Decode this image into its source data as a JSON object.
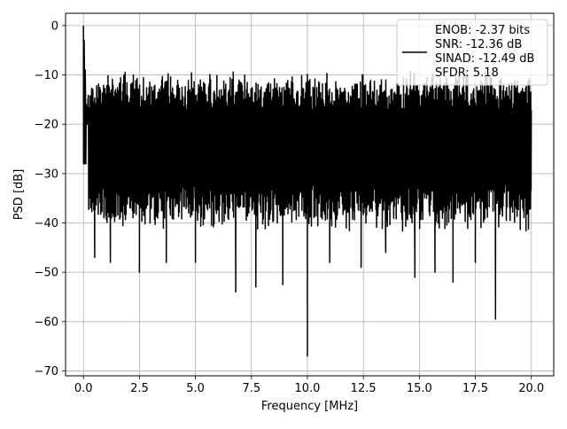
{
  "chart_data": {
    "type": "line",
    "xlabel": "Frequency [MHz]",
    "ylabel": "PSD [dB]",
    "xlim": [
      -0.8,
      21.0
    ],
    "ylim": [
      -71,
      2.5
    ],
    "xticks": [
      0.0,
      2.5,
      5.0,
      7.5,
      10.0,
      12.5,
      15.0,
      17.5,
      20.0
    ],
    "xtick_labels": [
      "0.0",
      "2.5",
      "5.0",
      "7.5",
      "10.0",
      "12.5",
      "15.0",
      "17.5",
      "20.0"
    ],
    "yticks": [
      0,
      -10,
      -20,
      -30,
      -40,
      -50,
      -60,
      -70
    ],
    "ytick_labels": [
      "0",
      "−10",
      "−20",
      "−30",
      "−40",
      "−50",
      "−60",
      "−70"
    ],
    "grid": true,
    "legend_position": "upper right",
    "legend_lines": [
      "ENOB: -2.37 bits",
      "SNR: -12.36 dB",
      "SINAD: -12.49 dB",
      "SFDR: 5.18"
    ],
    "series": [
      {
        "color": "#000000",
        "description": "noise-like PSD trace (estimated envelope)",
        "points": [
          [
            0.0,
            0.0
          ],
          [
            0.02,
            -6
          ],
          [
            0.05,
            -12
          ],
          [
            0.1,
            -17
          ],
          [
            0.2,
            -22
          ],
          [
            0.3,
            -36.5
          ],
          [
            0.5,
            -28
          ],
          [
            0.5,
            -47
          ],
          [
            1.0,
            -28
          ],
          [
            1.2,
            -48
          ],
          [
            1.5,
            -25
          ],
          [
            2.0,
            -40
          ],
          [
            2.5,
            -16
          ],
          [
            2.5,
            -50
          ],
          [
            3.0,
            -27
          ],
          [
            3.5,
            -17
          ],
          [
            3.7,
            -48
          ],
          [
            4.0,
            -28
          ],
          [
            4.5,
            -23
          ],
          [
            5.0,
            -42
          ],
          [
            5.0,
            -48
          ],
          [
            5.5,
            -26
          ],
          [
            6.0,
            -44
          ],
          [
            6.5,
            -18
          ],
          [
            6.8,
            -54
          ],
          [
            7.0,
            -26
          ],
          [
            7.5,
            -20
          ],
          [
            7.7,
            -53
          ],
          [
            8.0,
            -30
          ],
          [
            8.5,
            -20
          ],
          [
            8.9,
            -52.5
          ],
          [
            9.5,
            -27
          ],
          [
            10.0,
            -67
          ],
          [
            10.0,
            -17
          ],
          [
            10.5,
            -29
          ],
          [
            11.0,
            -48
          ],
          [
            11.5,
            -20
          ],
          [
            12.0,
            -37
          ],
          [
            12.4,
            -49
          ],
          [
            12.5,
            -21
          ],
          [
            13.0,
            -30
          ],
          [
            13.5,
            -46
          ],
          [
            14.0,
            -22
          ],
          [
            14.8,
            -51
          ],
          [
            15.0,
            -20
          ],
          [
            15.7,
            -50
          ],
          [
            16.0,
            -25
          ],
          [
            16.5,
            -52
          ],
          [
            17.0,
            -22
          ],
          [
            17.5,
            -48
          ],
          [
            18.0,
            -21
          ],
          [
            18.4,
            -59.5
          ],
          [
            18.5,
            -28
          ],
          [
            19.0,
            -21
          ],
          [
            19.5,
            -45
          ],
          [
            20.0,
            -25
          ],
          [
            20.0,
            -43
          ]
        ]
      }
    ]
  }
}
